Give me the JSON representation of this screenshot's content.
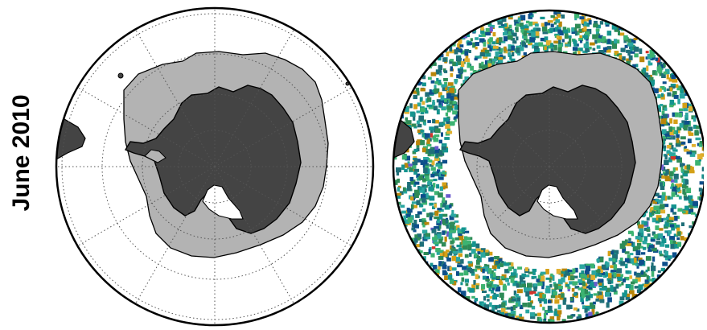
{
  "row_label": "June 2010",
  "panels": [
    {
      "name": "sea-ice-extent",
      "has_scatter_data": false
    },
    {
      "name": "sea-ice-extent-with-data-coverage",
      "has_scatter_data": true
    }
  ],
  "projection": "south-polar-stereographic",
  "colors": {
    "antarctica_land": "#444444",
    "sea_ice": "#b3b3b3",
    "ocean": "#ffffff",
    "coastline": "#000000",
    "graticule": "#555555",
    "data_palette": [
      "#1f6f78",
      "#15948f",
      "#2aa6a0",
      "#0d4f8b",
      "#2e8b57",
      "#3cb371",
      "#d4a017",
      "#e0b030",
      "#b8860b",
      "#6a5acd",
      "#d2352b"
    ]
  }
}
